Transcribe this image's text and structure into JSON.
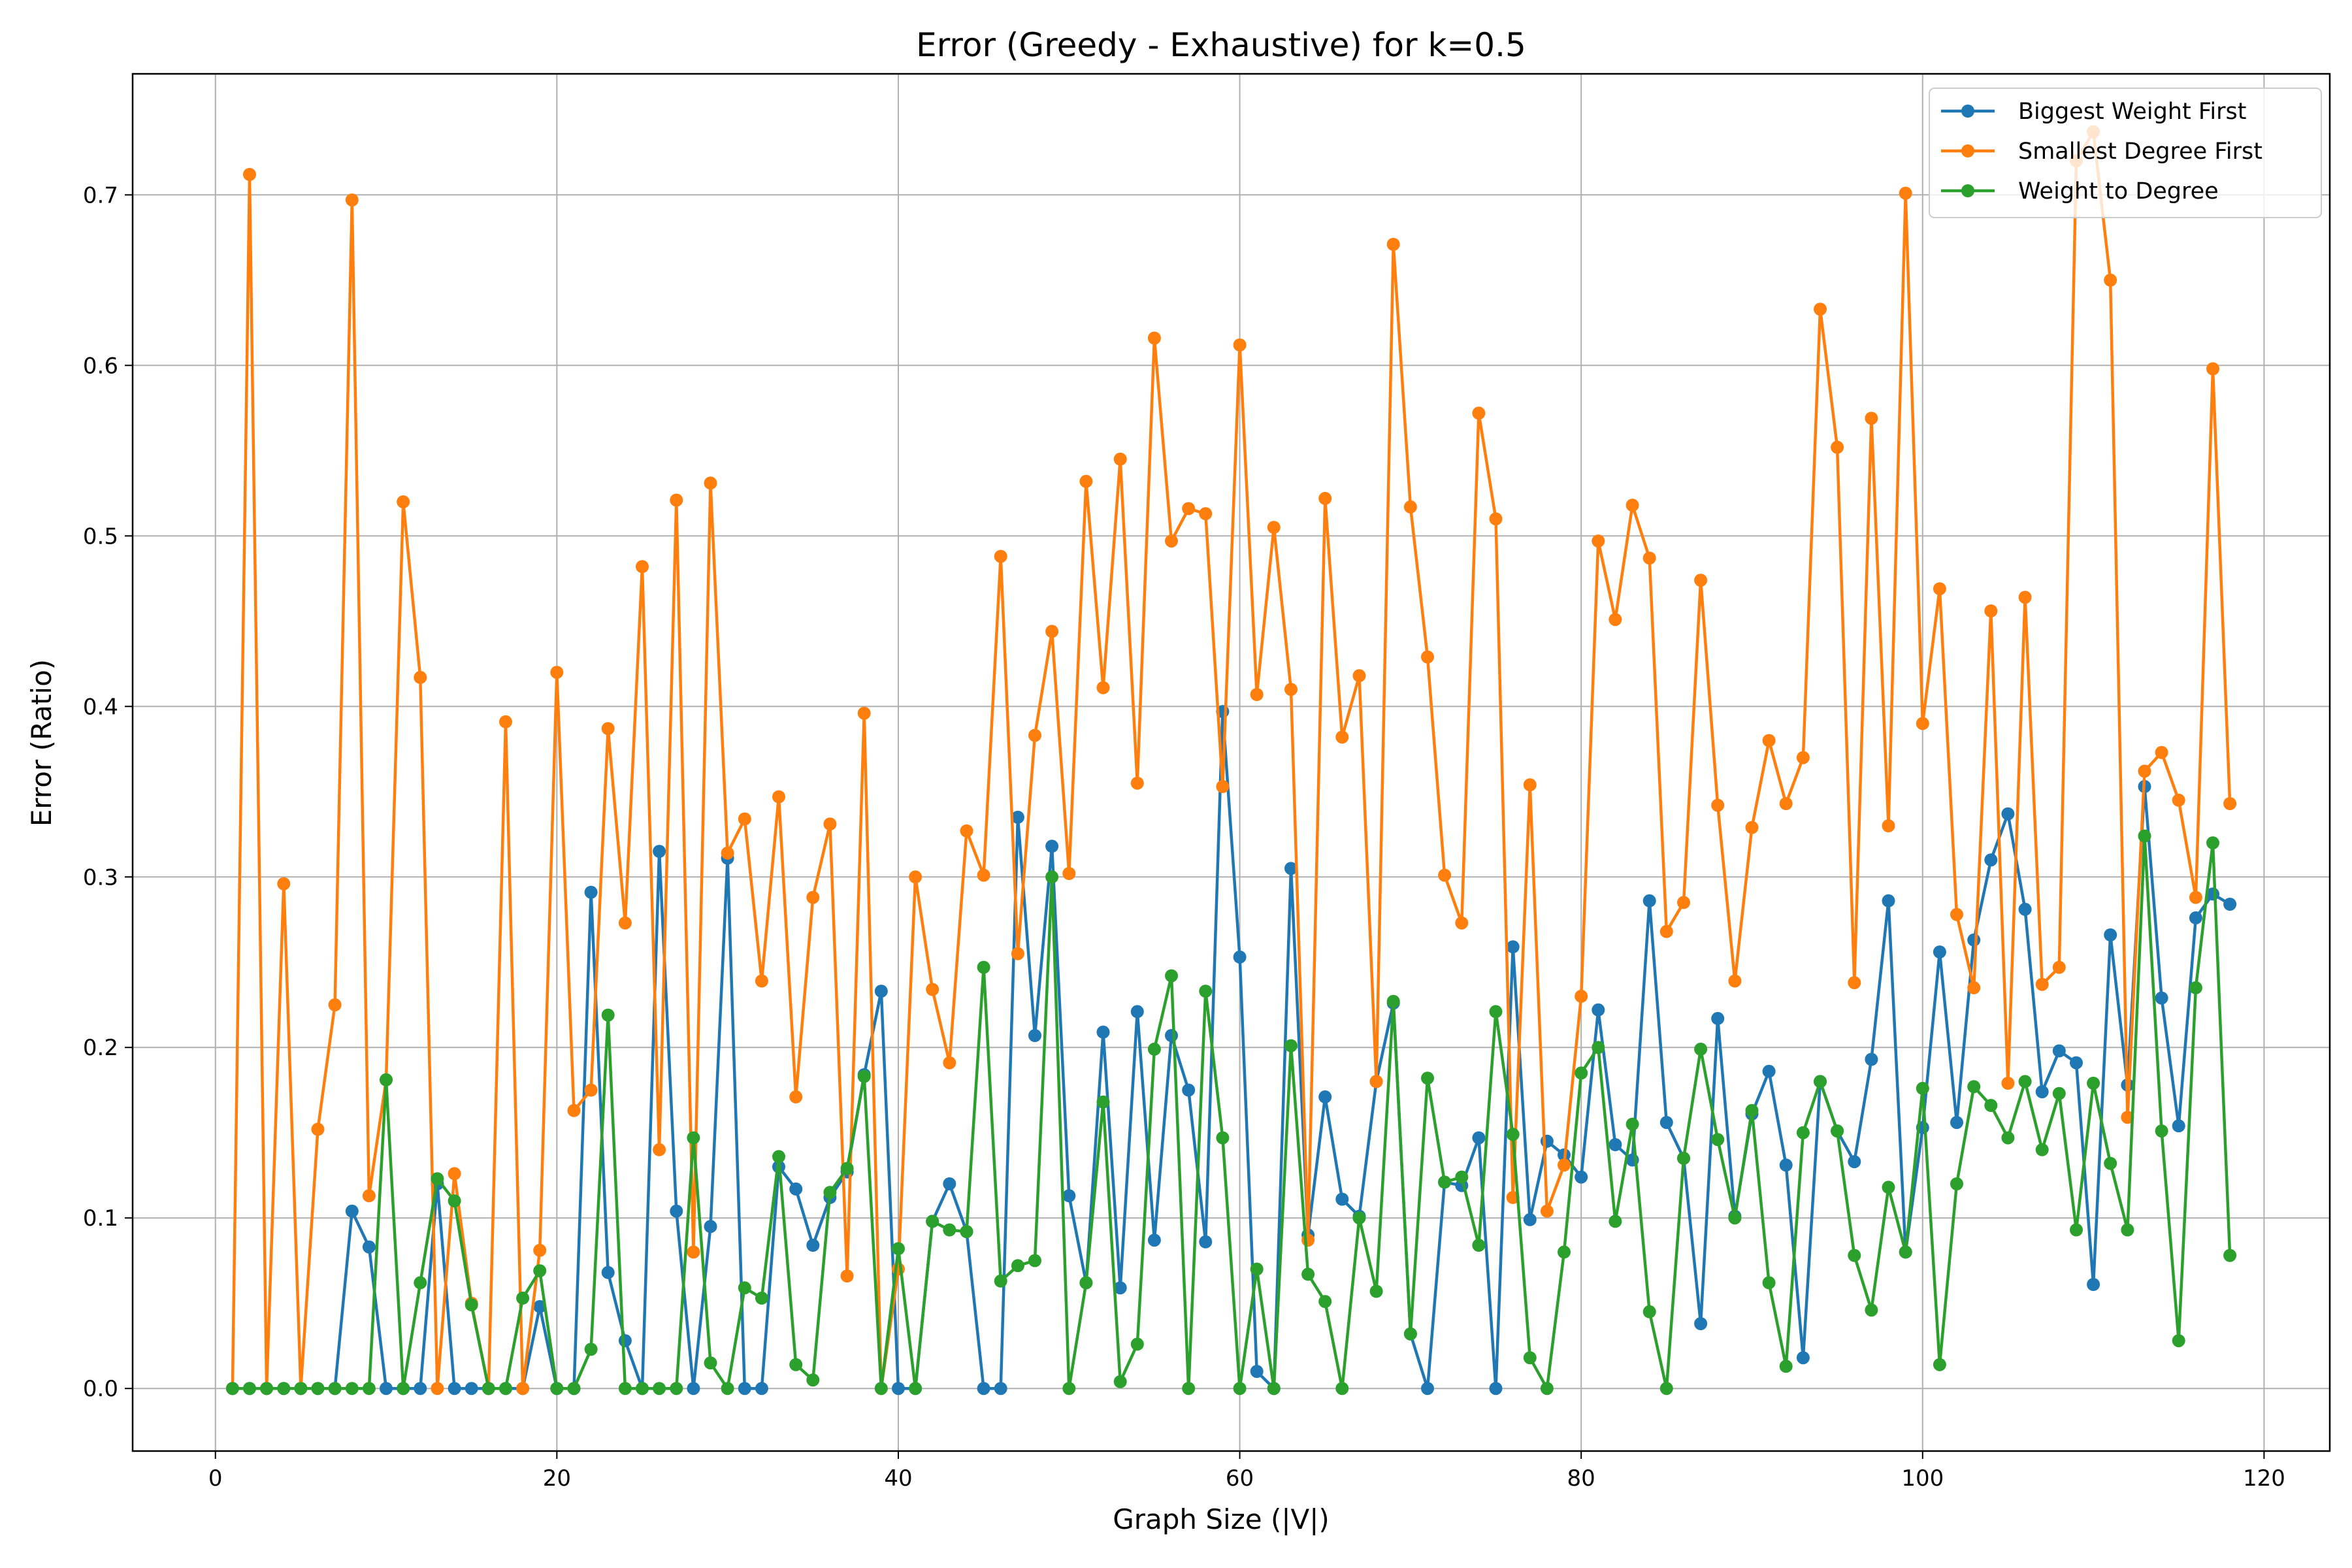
{
  "chart_data": {
    "type": "line",
    "title": "Error (Greedy - Exhaustive) for k=0.5",
    "xlabel": "Graph Size (|V|)",
    "ylabel": "Error (Ratio)",
    "xlim": [
      -4.85,
      123.85
    ],
    "ylim": [
      -0.0367,
      0.771
    ],
    "xticks": [
      0,
      20,
      40,
      60,
      80,
      100,
      120
    ],
    "yticks": [
      0.0,
      0.1,
      0.2,
      0.3,
      0.4,
      0.5,
      0.6,
      0.7
    ],
    "xtick_labels": [
      "0",
      "20",
      "40",
      "60",
      "80",
      "100",
      "120"
    ],
    "ytick_labels": [
      "0.0",
      "0.1",
      "0.2",
      "0.3",
      "0.4",
      "0.5",
      "0.6",
      "0.7"
    ],
    "grid": true,
    "legend_position": "top-right",
    "x_start": 1,
    "x_step": 1,
    "series": [
      {
        "name": "Biggest Weight First",
        "color": "#1f77b4",
        "values": [
          0,
          0,
          0,
          0,
          0,
          0,
          0,
          0.104,
          0.083,
          0,
          0,
          0,
          0.12,
          0,
          0,
          0,
          0,
          0,
          0.048,
          0,
          0,
          0.291,
          0.068,
          0.028,
          0,
          0.315,
          0.104,
          0,
          0.095,
          0.311,
          0,
          0,
          0.13,
          0.117,
          0.084,
          0.112,
          0.127,
          0.184,
          0.233,
          0,
          0,
          0.098,
          0.12,
          0.092,
          0,
          0,
          0.335,
          0.207,
          0.318,
          0.113,
          0.062,
          0.209,
          0.059,
          0.221,
          0.087,
          0.207,
          0.175,
          0.086,
          0.397,
          0.253,
          0.01,
          0,
          0.305,
          0.09,
          0.171,
          0.111,
          0.101,
          0.18,
          0.226,
          0.032,
          0,
          0.121,
          0.119,
          0.147,
          0,
          0.259,
          0.099,
          0.145,
          0.137,
          0.124,
          0.222,
          0.143,
          0.134,
          0.286,
          0.156,
          0.135,
          0.038,
          0.217,
          0.101,
          0.161,
          0.186,
          0.131,
          0.018,
          0.18,
          0.151,
          0.133,
          0.193,
          0.286,
          0.08,
          0.153,
          0.256,
          0.156,
          0.263,
          0.31,
          0.337,
          0.281,
          0.174,
          0.198,
          0.191,
          0.061,
          0.266,
          0.178,
          0.353,
          0.229,
          0.154,
          0.276,
          0.29,
          0.284
        ]
      },
      {
        "name": "Smallest Degree First",
        "color": "#ff7f0e",
        "values": [
          0,
          0.712,
          0,
          0.296,
          0,
          0.152,
          0.225,
          0.697,
          0.113,
          0.181,
          0.52,
          0.417,
          0,
          0.126,
          0.05,
          0,
          0.391,
          0,
          0.081,
          0.42,
          0.163,
          0.175,
          0.387,
          0.273,
          0.482,
          0.14,
          0.521,
          0.08,
          0.531,
          0.314,
          0.334,
          0.239,
          0.347,
          0.171,
          0.288,
          0.331,
          0.066,
          0.396,
          0,
          0.07,
          0.3,
          0.234,
          0.191,
          0.327,
          0.301,
          0.488,
          0.255,
          0.383,
          0.444,
          0.302,
          0.532,
          0.411,
          0.545,
          0.355,
          0.616,
          0.497,
          0.516,
          0.513,
          0.353,
          0.612,
          0.407,
          0.505,
          0.41,
          0.087,
          0.522,
          0.382,
          0.418,
          0.18,
          0.671,
          0.517,
          0.429,
          0.301,
          0.273,
          0.572,
          0.51,
          0.112,
          0.354,
          0.104,
          0.131,
          0.23,
          0.497,
          0.451,
          0.518,
          0.487,
          0.268,
          0.285,
          0.474,
          0.342,
          0.239,
          0.329,
          0.38,
          0.343,
          0.37,
          0.633,
          0.552,
          0.238,
          0.569,
          0.33,
          0.701,
          0.39,
          0.469,
          0.278,
          0.235,
          0.456,
          0.179,
          0.464,
          0.237,
          0.247,
          0.72,
          0.737,
          0.65,
          0.159,
          0.362,
          0.373,
          0.345,
          0.288,
          0.598,
          0.343
        ]
      },
      {
        "name": "Weight to Degree",
        "color": "#2ca02c",
        "values": [
          0,
          0,
          0,
          0,
          0,
          0,
          0,
          0,
          0,
          0.181,
          0,
          0.062,
          0.123,
          0.11,
          0.049,
          0,
          0,
          0.053,
          0.069,
          0,
          0,
          0.023,
          0.219,
          0,
          0,
          0,
          0,
          0.147,
          0.015,
          0,
          0.059,
          0.053,
          0.136,
          0.014,
          0.005,
          0.115,
          0.129,
          0.183,
          0,
          0.082,
          0,
          0.098,
          0.093,
          0.092,
          0.247,
          0.063,
          0.072,
          0.075,
          0.3,
          0,
          0.062,
          0.168,
          0.004,
          0.026,
          0.199,
          0.242,
          0,
          0.233,
          0.147,
          0,
          0.07,
          0,
          0.201,
          0.067,
          0.051,
          0,
          0.1,
          0.057,
          0.227,
          0.032,
          0.182,
          0.121,
          0.124,
          0.084,
          0.221,
          0.149,
          0.018,
          0,
          0.08,
          0.185,
          0.2,
          0.098,
          0.155,
          0.045,
          0,
          0.135,
          0.199,
          0.146,
          0.1,
          0.163,
          0.062,
          0.013,
          0.15,
          0.18,
          0.151,
          0.078,
          0.046,
          0.118,
          0.08,
          0.176,
          0.014,
          0.12,
          0.177,
          0.166,
          0.147,
          0.18,
          0.14,
          0.173,
          0.093,
          0.179,
          0.132,
          0.093,
          0.324,
          0.151,
          0.028,
          0.235,
          0.32,
          0.078
        ]
      }
    ]
  }
}
